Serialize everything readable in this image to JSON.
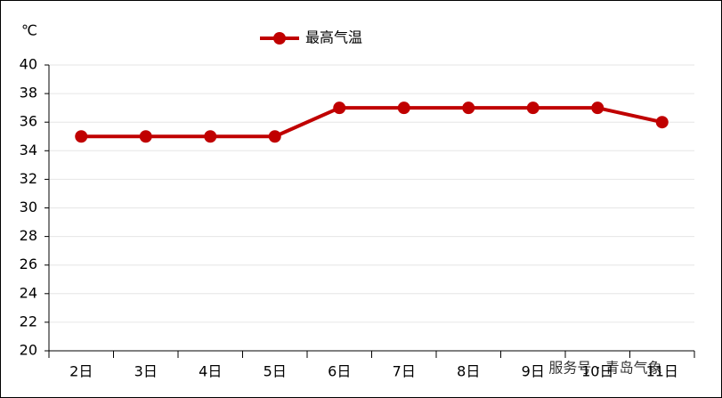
{
  "chart_data": {
    "type": "line",
    "y_unit": "℃",
    "categories": [
      "2日",
      "3日",
      "4日",
      "5日",
      "6日",
      "7日",
      "8日",
      "9日",
      "10日",
      "11日"
    ],
    "series": [
      {
        "name": "最高气温",
        "color": "#c00000",
        "values": [
          35,
          35,
          35,
          35,
          37,
          37,
          37,
          37,
          37,
          36
        ]
      }
    ],
    "ylim": [
      20,
      40
    ],
    "yticks": [
      20,
      22,
      24,
      26,
      28,
      30,
      32,
      34,
      36,
      38,
      40
    ],
    "grid": true,
    "legend": "top",
    "watermark": "服务号 · 青岛气象"
  }
}
